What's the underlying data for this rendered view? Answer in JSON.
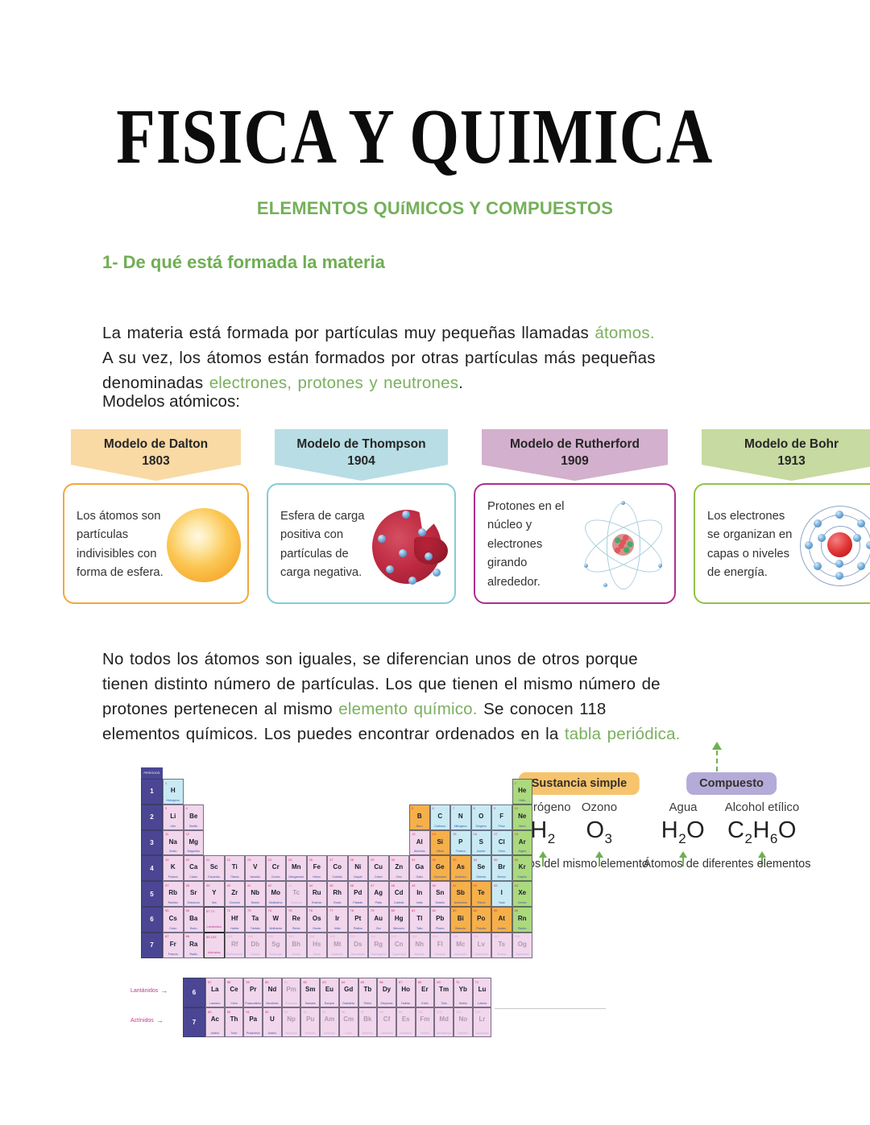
{
  "colors": {
    "accent_green": "#74b05a",
    "title_black": "#0c0c0c",
    "dalton_header": "#f9d9a4",
    "dalton_border": "#f2a73e",
    "thompson_header": "#b8dde4",
    "thompson_border": "#85ccd6",
    "rutherford_header": "#d3b0cd",
    "rutherford_border": "#ad2f8f",
    "bohr_header": "#c7daa1",
    "bohr_border": "#94c14a",
    "simple_badge": "#f6c46c",
    "compound_badge": "#b4abd8"
  },
  "header": {
    "title": "FISICA Y QUIMICA",
    "subtitle": "ELEMENTOS QUíMICOS Y COMPUESTOS"
  },
  "section": {
    "heading": "1- De qué está formada la materia"
  },
  "paragraphs": {
    "models_label": "Modelos atómicos:",
    "p1": [
      {
        "t": "La materia está formada por partículas muy pequeñas llamadas "
      },
      {
        "t": "átomos.",
        "g": true
      },
      {
        "br": true
      },
      {
        "t": "A su vez, los átomos están formados por otras partículas más pequeñas"
      },
      {
        "br": true
      },
      {
        "t": "denominadas "
      },
      {
        "t": "electrones, protones y neutrones",
        "g": true
      },
      {
        "t": "."
      }
    ],
    "p2": [
      {
        "t": "No todos los átomos son iguales, se diferencian unos de otros porque"
      },
      {
        "br": true
      },
      {
        "t": "tienen distinto número de partículas. Los que tienen el mismo número de"
      },
      {
        "br": true
      },
      {
        "t": "protones pertenecen al mismo "
      },
      {
        "t": "elemento químico.",
        "g": true
      },
      {
        "t": " Se conocen 118"
      },
      {
        "br": true
      },
      {
        "t": "elementos químicos. Los puedes encontrar ordenados en la "
      },
      {
        "t": "tabla periódica.",
        "g": true
      }
    ]
  },
  "models": [
    {
      "title": "Modelo de Dalton",
      "year": "1803",
      "desc": "Los átomos son partículas indivisibles con forma de esfera."
    },
    {
      "title": "Modelo de Thompson",
      "year": "1904",
      "desc": "Esfera de carga positiva con partículas de carga negativa."
    },
    {
      "title": "Modelo de Rutherford",
      "year": "1909",
      "desc": "Protones en el núcleo y electrones girando alrededor."
    },
    {
      "title": "Modelo de Bohr",
      "year": "1913",
      "desc": "Los electrones se organizan en capas o niveles de energía."
    }
  ],
  "composition": {
    "badges": [
      {
        "label": "Sustancia simple"
      },
      {
        "label": "Compuesto"
      }
    ],
    "substances": [
      {
        "name": "Hidrógeno",
        "formula": [
          [
            "H",
            "2"
          ]
        ]
      },
      {
        "name": "Ozono",
        "formula": [
          [
            "O",
            "3"
          ]
        ]
      },
      {
        "name": "Agua",
        "formula": [
          [
            "H",
            "2"
          ],
          [
            "O",
            ""
          ]
        ]
      },
      {
        "name": "Alcohol etílico",
        "formula": [
          [
            "C",
            "2"
          ],
          [
            "H",
            "6"
          ],
          [
            "O",
            ""
          ]
        ]
      }
    ],
    "captions": [
      "Átomos del mismo elemento",
      "Átomos de diferentes elementos"
    ]
  },
  "periodic_table": {
    "header": "PERÍODOS",
    "periods": [
      "1",
      "2",
      "3",
      "4",
      "5",
      "6",
      "7"
    ],
    "series_periods": [
      "6",
      "7"
    ],
    "lanthanides_label": "Lantánidos",
    "actinides_label": "Actínidos",
    "rows": [
      [
        {
          "c": 1,
          "s": "H",
          "n": "1",
          "k": "nm",
          "nm": "Hidrógeno"
        },
        {
          "c": 18,
          "s": "He",
          "n": "2",
          "k": "nb",
          "nm": "Helio"
        }
      ],
      [
        {
          "c": 1,
          "s": "Li",
          "n": "3",
          "k": "m",
          "nm": "Litio"
        },
        {
          "c": 2,
          "s": "Be",
          "n": "4",
          "k": "m",
          "nm": "Berilio"
        },
        {
          "c": 13,
          "s": "B",
          "n": "5",
          "k": "md",
          "nm": "Boro"
        },
        {
          "c": 14,
          "s": "C",
          "n": "6",
          "k": "nm",
          "nm": "Carbono"
        },
        {
          "c": 15,
          "s": "N",
          "n": "7",
          "k": "nm",
          "nm": "Nitrógeno"
        },
        {
          "c": 16,
          "s": "O",
          "n": "8",
          "k": "nm",
          "nm": "Oxígeno"
        },
        {
          "c": 17,
          "s": "F",
          "n": "9",
          "k": "nm",
          "nm": "Flúor"
        },
        {
          "c": 18,
          "s": "Ne",
          "n": "10",
          "k": "nb",
          "nm": "Neón"
        }
      ],
      [
        {
          "c": 1,
          "s": "Na",
          "n": "11",
          "k": "m",
          "nm": "Sodio"
        },
        {
          "c": 2,
          "s": "Mg",
          "n": "12",
          "k": "m",
          "nm": "Magnesio"
        },
        {
          "c": 13,
          "s": "Al",
          "n": "13",
          "k": "m",
          "nm": "Aluminio"
        },
        {
          "c": 14,
          "s": "Si",
          "n": "14",
          "k": "md",
          "nm": "Silicio"
        },
        {
          "c": 15,
          "s": "P",
          "n": "15",
          "k": "nm",
          "nm": "Fósforo"
        },
        {
          "c": 16,
          "s": "S",
          "n": "16",
          "k": "nm",
          "nm": "Azufre"
        },
        {
          "c": 17,
          "s": "Cl",
          "n": "17",
          "k": "nm",
          "nm": "Cloro"
        },
        {
          "c": 18,
          "s": "Ar",
          "n": "18",
          "k": "nb",
          "nm": "Argón"
        }
      ],
      [
        {
          "c": 1,
          "s": "K",
          "n": "19",
          "k": "m",
          "nm": "Potasio"
        },
        {
          "c": 2,
          "s": "Ca",
          "n": "20",
          "k": "m",
          "nm": "Calcio"
        },
        {
          "c": 3,
          "s": "Sc",
          "n": "21",
          "k": "m",
          "nm": "Escandio"
        },
        {
          "c": 4,
          "s": "Ti",
          "n": "22",
          "k": "m",
          "nm": "Titanio"
        },
        {
          "c": 5,
          "s": "V",
          "n": "23",
          "k": "m",
          "nm": "Vanadio"
        },
        {
          "c": 6,
          "s": "Cr",
          "n": "24",
          "k": "m",
          "nm": "Cromo"
        },
        {
          "c": 7,
          "s": "Mn",
          "n": "25",
          "k": "m",
          "nm": "Manganeso"
        },
        {
          "c": 8,
          "s": "Fe",
          "n": "26",
          "k": "m",
          "nm": "Hierro"
        },
        {
          "c": 9,
          "s": "Co",
          "n": "27",
          "k": "m",
          "nm": "Cobalto"
        },
        {
          "c": 10,
          "s": "Ni",
          "n": "28",
          "k": "m",
          "nm": "Níquel"
        },
        {
          "c": 11,
          "s": "Cu",
          "n": "29",
          "k": "m",
          "nm": "Cobre"
        },
        {
          "c": 12,
          "s": "Zn",
          "n": "30",
          "k": "m",
          "nm": "Cinc"
        },
        {
          "c": 13,
          "s": "Ga",
          "n": "31",
          "k": "m",
          "nm": "Galio"
        },
        {
          "c": 14,
          "s": "Ge",
          "n": "32",
          "k": "md",
          "nm": "Germanio"
        },
        {
          "c": 15,
          "s": "As",
          "n": "33",
          "k": "md",
          "nm": "Arsénico"
        },
        {
          "c": 16,
          "s": "Se",
          "n": "34",
          "k": "nm",
          "nm": "Selenio"
        },
        {
          "c": 17,
          "s": "Br",
          "n": "35",
          "k": "nm",
          "nm": "Bromo"
        },
        {
          "c": 18,
          "s": "Kr",
          "n": "36",
          "k": "nb",
          "nm": "Kriptón"
        }
      ],
      [
        {
          "c": 1,
          "s": "Rb",
          "n": "37",
          "k": "m",
          "nm": "Rubidio"
        },
        {
          "c": 2,
          "s": "Sr",
          "n": "38",
          "k": "m",
          "nm": "Estroncio"
        },
        {
          "c": 3,
          "s": "Y",
          "n": "39",
          "k": "m",
          "nm": "Itrio"
        },
        {
          "c": 4,
          "s": "Zr",
          "n": "40",
          "k": "m",
          "nm": "Circonio"
        },
        {
          "c": 5,
          "s": "Nb",
          "n": "41",
          "k": "m",
          "nm": "Niobio"
        },
        {
          "c": 6,
          "s": "Mo",
          "n": "42",
          "k": "m",
          "nm": "Molibdeno"
        },
        {
          "c": 7,
          "s": "Tc",
          "n": "43",
          "k": "m",
          "nm": "Tecnecio",
          "f": 1
        },
        {
          "c": 8,
          "s": "Ru",
          "n": "44",
          "k": "m",
          "nm": "Rutenio"
        },
        {
          "c": 9,
          "s": "Rh",
          "n": "45",
          "k": "m",
          "nm": "Rodio"
        },
        {
          "c": 10,
          "s": "Pd",
          "n": "46",
          "k": "m",
          "nm": "Paladio"
        },
        {
          "c": 11,
          "s": "Ag",
          "n": "47",
          "k": "m",
          "nm": "Plata"
        },
        {
          "c": 12,
          "s": "Cd",
          "n": "48",
          "k": "m",
          "nm": "Cadmio"
        },
        {
          "c": 13,
          "s": "In",
          "n": "49",
          "k": "m",
          "nm": "Indio"
        },
        {
          "c": 14,
          "s": "Sn",
          "n": "50",
          "k": "m",
          "nm": "Estaño"
        },
        {
          "c": 15,
          "s": "Sb",
          "n": "51",
          "k": "md",
          "nm": "Antimonio"
        },
        {
          "c": 16,
          "s": "Te",
          "n": "52",
          "k": "md",
          "nm": "Telurio"
        },
        {
          "c": 17,
          "s": "I",
          "n": "53",
          "k": "nm",
          "nm": "Yodo"
        },
        {
          "c": 18,
          "s": "Xe",
          "n": "54",
          "k": "nb",
          "nm": "Xenón"
        }
      ],
      [
        {
          "c": 1,
          "s": "Cs",
          "n": "55",
          "k": "m",
          "nm": "Cesio"
        },
        {
          "c": 2,
          "s": "Ba",
          "n": "56",
          "k": "m",
          "nm": "Bario"
        },
        {
          "c": 3,
          "k": "sp",
          "rng": "57-71",
          "lbl": "Lantánidos"
        },
        {
          "c": 4,
          "s": "Hf",
          "n": "72",
          "k": "m",
          "nm": "Hafnio"
        },
        {
          "c": 5,
          "s": "Ta",
          "n": "73",
          "k": "m",
          "nm": "Tántalo"
        },
        {
          "c": 6,
          "s": "W",
          "n": "74",
          "k": "m",
          "nm": "Wolframio"
        },
        {
          "c": 7,
          "s": "Re",
          "n": "75",
          "k": "m",
          "nm": "Renio"
        },
        {
          "c": 8,
          "s": "Os",
          "n": "76",
          "k": "m",
          "nm": "Osmio"
        },
        {
          "c": 9,
          "s": "Ir",
          "n": "77",
          "k": "m",
          "nm": "Iridio"
        },
        {
          "c": 10,
          "s": "Pt",
          "n": "78",
          "k": "m",
          "nm": "Platino"
        },
        {
          "c": 11,
          "s": "Au",
          "n": "79",
          "k": "m",
          "nm": "Oro"
        },
        {
          "c": 12,
          "s": "Hg",
          "n": "80",
          "k": "m",
          "nm": "Mercurio"
        },
        {
          "c": 13,
          "s": "Tl",
          "n": "81",
          "k": "m",
          "nm": "Talio"
        },
        {
          "c": 14,
          "s": "Pb",
          "n": "82",
          "k": "m",
          "nm": "Plomo"
        },
        {
          "c": 15,
          "s": "Bi",
          "n": "83",
          "k": "md",
          "nm": "Bismuto"
        },
        {
          "c": 16,
          "s": "Po",
          "n": "84",
          "k": "md",
          "nm": "Polonio"
        },
        {
          "c": 17,
          "s": "At",
          "n": "85",
          "k": "md",
          "nm": "Astato"
        },
        {
          "c": 18,
          "s": "Rn",
          "n": "86",
          "k": "nb",
          "nm": "Radón"
        }
      ],
      [
        {
          "c": 1,
          "s": "Fr",
          "n": "87",
          "k": "m",
          "nm": "Francio"
        },
        {
          "c": 2,
          "s": "Ra",
          "n": "88",
          "k": "m",
          "nm": "Radio"
        },
        {
          "c": 3,
          "k": "sp",
          "rng": "89-103",
          "lbl": "Actínidos"
        },
        {
          "c": 4,
          "s": "Rf",
          "n": "104",
          "k": "m",
          "nm": "Rutherfordio",
          "f": 1
        },
        {
          "c": 5,
          "s": "Db",
          "n": "105",
          "k": "m",
          "nm": "Dubnio",
          "f": 1
        },
        {
          "c": 6,
          "s": "Sg",
          "n": "106",
          "k": "m",
          "nm": "Seaborgio",
          "f": 1
        },
        {
          "c": 7,
          "s": "Bh",
          "n": "107",
          "k": "m",
          "nm": "Bohrio",
          "f": 1
        },
        {
          "c": 8,
          "s": "Hs",
          "n": "108",
          "k": "m",
          "nm": "Hasio",
          "f": 1
        },
        {
          "c": 9,
          "s": "Mt",
          "n": "109",
          "k": "m",
          "nm": "Meitnerio",
          "f": 1
        },
        {
          "c": 10,
          "s": "Ds",
          "n": "110",
          "k": "m",
          "nm": "Darmstatio",
          "f": 1
        },
        {
          "c": 11,
          "s": "Rg",
          "n": "111",
          "k": "m",
          "nm": "Roentgenio",
          "f": 1
        },
        {
          "c": 12,
          "s": "Cn",
          "n": "112",
          "k": "m",
          "nm": "Copernicio",
          "f": 1
        },
        {
          "c": 13,
          "s": "Nh",
          "n": "113",
          "k": "m",
          "nm": "Nihonio",
          "f": 1
        },
        {
          "c": 14,
          "s": "Fl",
          "n": "114",
          "k": "m",
          "nm": "Flerovio",
          "f": 1
        },
        {
          "c": 15,
          "s": "Mc",
          "n": "115",
          "k": "m",
          "nm": "Moscovio",
          "f": 1
        },
        {
          "c": 16,
          "s": "Lv",
          "n": "116",
          "k": "m",
          "nm": "Livermorio",
          "f": 1
        },
        {
          "c": 17,
          "s": "Ts",
          "n": "117",
          "k": "m",
          "nm": "Teneso",
          "f": 1
        },
        {
          "c": 18,
          "s": "Og",
          "n": "118",
          "k": "m",
          "nm": "Oganesón",
          "f": 1
        }
      ]
    ],
    "lanthanides": [
      {
        "s": "La",
        "n": "57",
        "nm": "Lantano"
      },
      {
        "s": "Ce",
        "n": "58",
        "nm": "Cerio"
      },
      {
        "s": "Pr",
        "n": "59",
        "nm": "Praseodimio"
      },
      {
        "s": "Nd",
        "n": "60",
        "nm": "Neodimio"
      },
      {
        "s": "Pm",
        "n": "61",
        "nm": "Prometio",
        "f": 1
      },
      {
        "s": "Sm",
        "n": "62",
        "nm": "Samario"
      },
      {
        "s": "Eu",
        "n": "63",
        "nm": "Europio"
      },
      {
        "s": "Gd",
        "n": "64",
        "nm": "Gadolinio"
      },
      {
        "s": "Tb",
        "n": "65",
        "nm": "Terbio"
      },
      {
        "s": "Dy",
        "n": "66",
        "nm": "Disprosio"
      },
      {
        "s": "Ho",
        "n": "67",
        "nm": "Holmio"
      },
      {
        "s": "Er",
        "n": "68",
        "nm": "Erbio"
      },
      {
        "s": "Tm",
        "n": "69",
        "nm": "Tulio"
      },
      {
        "s": "Yb",
        "n": "70",
        "nm": "Iterbio"
      },
      {
        "s": "Lu",
        "n": "71",
        "nm": "Lutecio"
      }
    ],
    "actinides": [
      {
        "s": "Ac",
        "n": "89",
        "nm": "Actinio"
      },
      {
        "s": "Th",
        "n": "90",
        "nm": "Torio"
      },
      {
        "s": "Pa",
        "n": "91",
        "nm": "Protactinio"
      },
      {
        "s": "U",
        "n": "92",
        "nm": "Uranio"
      },
      {
        "s": "Np",
        "n": "93",
        "nm": "Neptunio",
        "f": 1
      },
      {
        "s": "Pu",
        "n": "94",
        "nm": "Plutonio",
        "f": 1
      },
      {
        "s": "Am",
        "n": "95",
        "nm": "Americio",
        "f": 1
      },
      {
        "s": "Cm",
        "n": "96",
        "nm": "Curio",
        "f": 1
      },
      {
        "s": "Bk",
        "n": "97",
        "nm": "Berkelio",
        "f": 1
      },
      {
        "s": "Cf",
        "n": "98",
        "nm": "Californio",
        "f": 1
      },
      {
        "s": "Es",
        "n": "99",
        "nm": "Einstenio",
        "f": 1
      },
      {
        "s": "Fm",
        "n": "100",
        "nm": "Fermio",
        "f": 1
      },
      {
        "s": "Md",
        "n": "101",
        "nm": "Mendelevio",
        "f": 1
      },
      {
        "s": "No",
        "n": "102",
        "nm": "Nobelio",
        "f": 1
      },
      {
        "s": "Lr",
        "n": "103",
        "nm": "Laurencio",
        "f": 1
      }
    ]
  }
}
